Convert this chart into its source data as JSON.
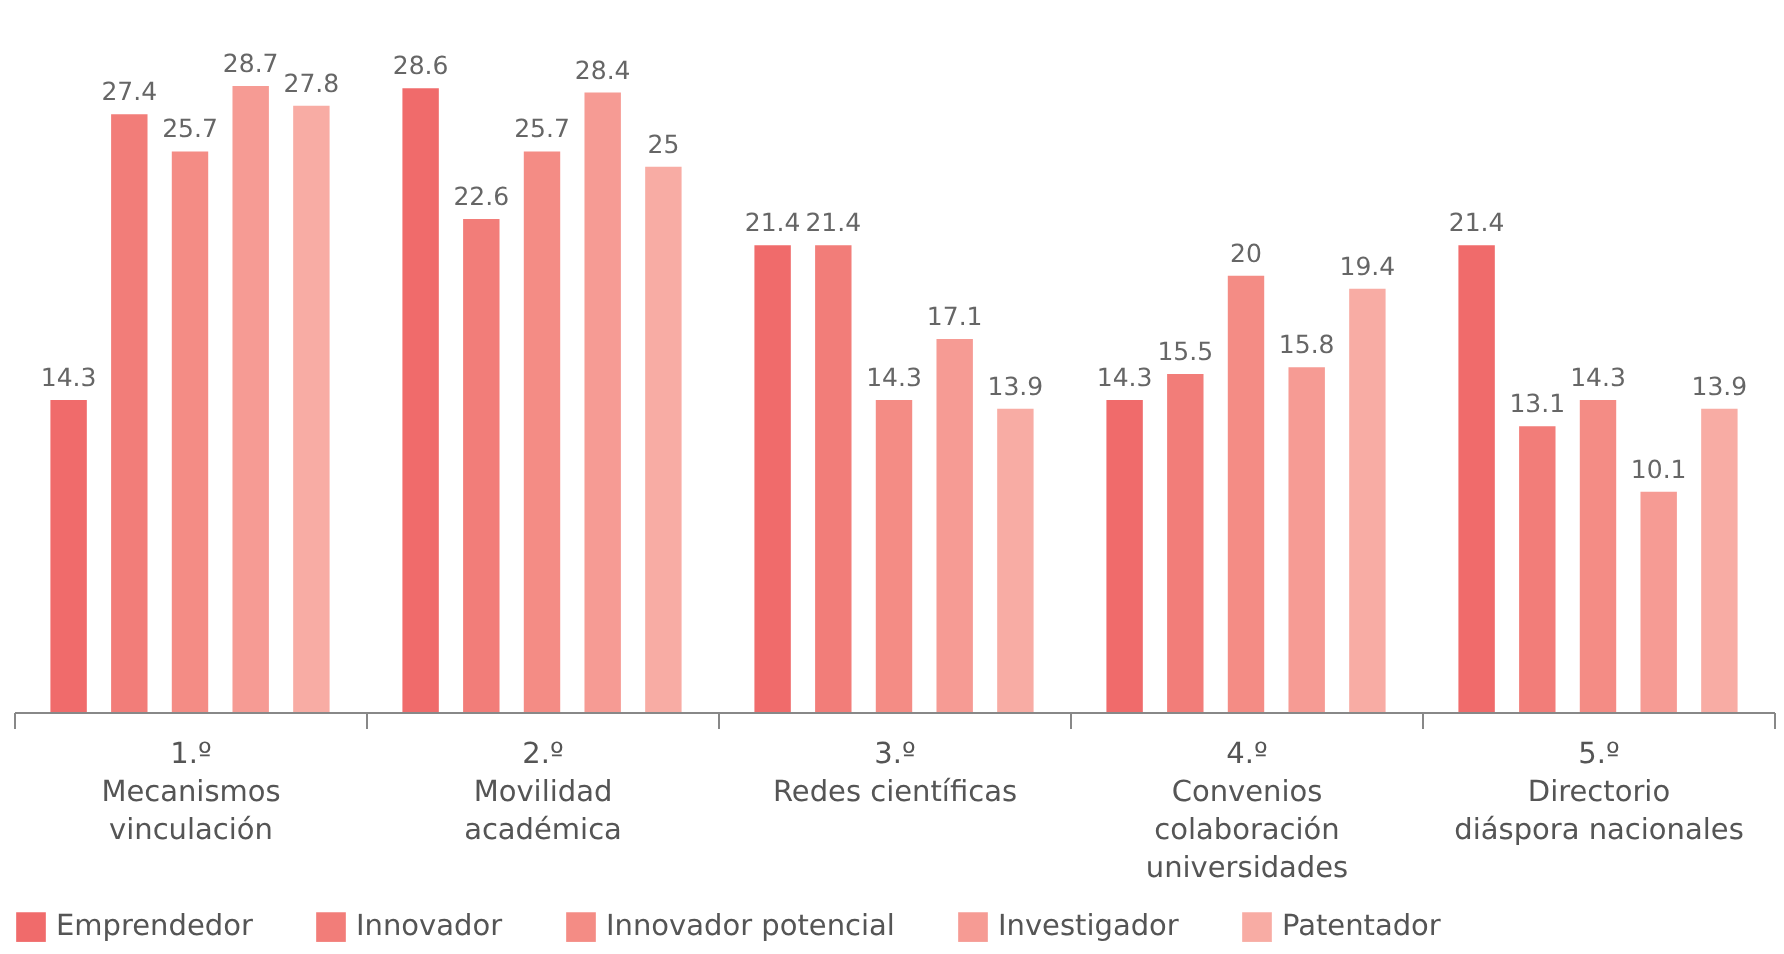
{
  "chart_data": {
    "type": "bar",
    "categories": [
      "1.º\nMecanismos\nvinculación",
      "2.º\nMovilidad\nacadémica",
      "3.º\nRedes científicas",
      "4.º\nConvenios\ncolaboración\nuniversidades",
      "5.º\nDirectorio\ndiáspora nacionales"
    ],
    "series": [
      {
        "name": "Emprendedor",
        "color": "#f06b6b",
        "values": [
          14.3,
          28.6,
          21.4,
          14.3,
          21.4
        ]
      },
      {
        "name": "Innovador",
        "color": "#f27d79",
        "values": [
          27.4,
          22.6,
          21.4,
          15.5,
          13.1
        ]
      },
      {
        "name": "Innovador potencial",
        "color": "#f48c85",
        "values": [
          25.7,
          25.7,
          14.3,
          20,
          14.3
        ]
      },
      {
        "name": "Investigador",
        "color": "#f69b94",
        "values": [
          28.7,
          28.4,
          17.1,
          15.8,
          10.1
        ]
      },
      {
        "name": "Patentador",
        "color": "#f8aca4",
        "values": [
          27.8,
          25,
          13.9,
          19.4,
          13.9
        ]
      }
    ],
    "data_labels": true,
    "legend": "bottom",
    "grid": false
  }
}
